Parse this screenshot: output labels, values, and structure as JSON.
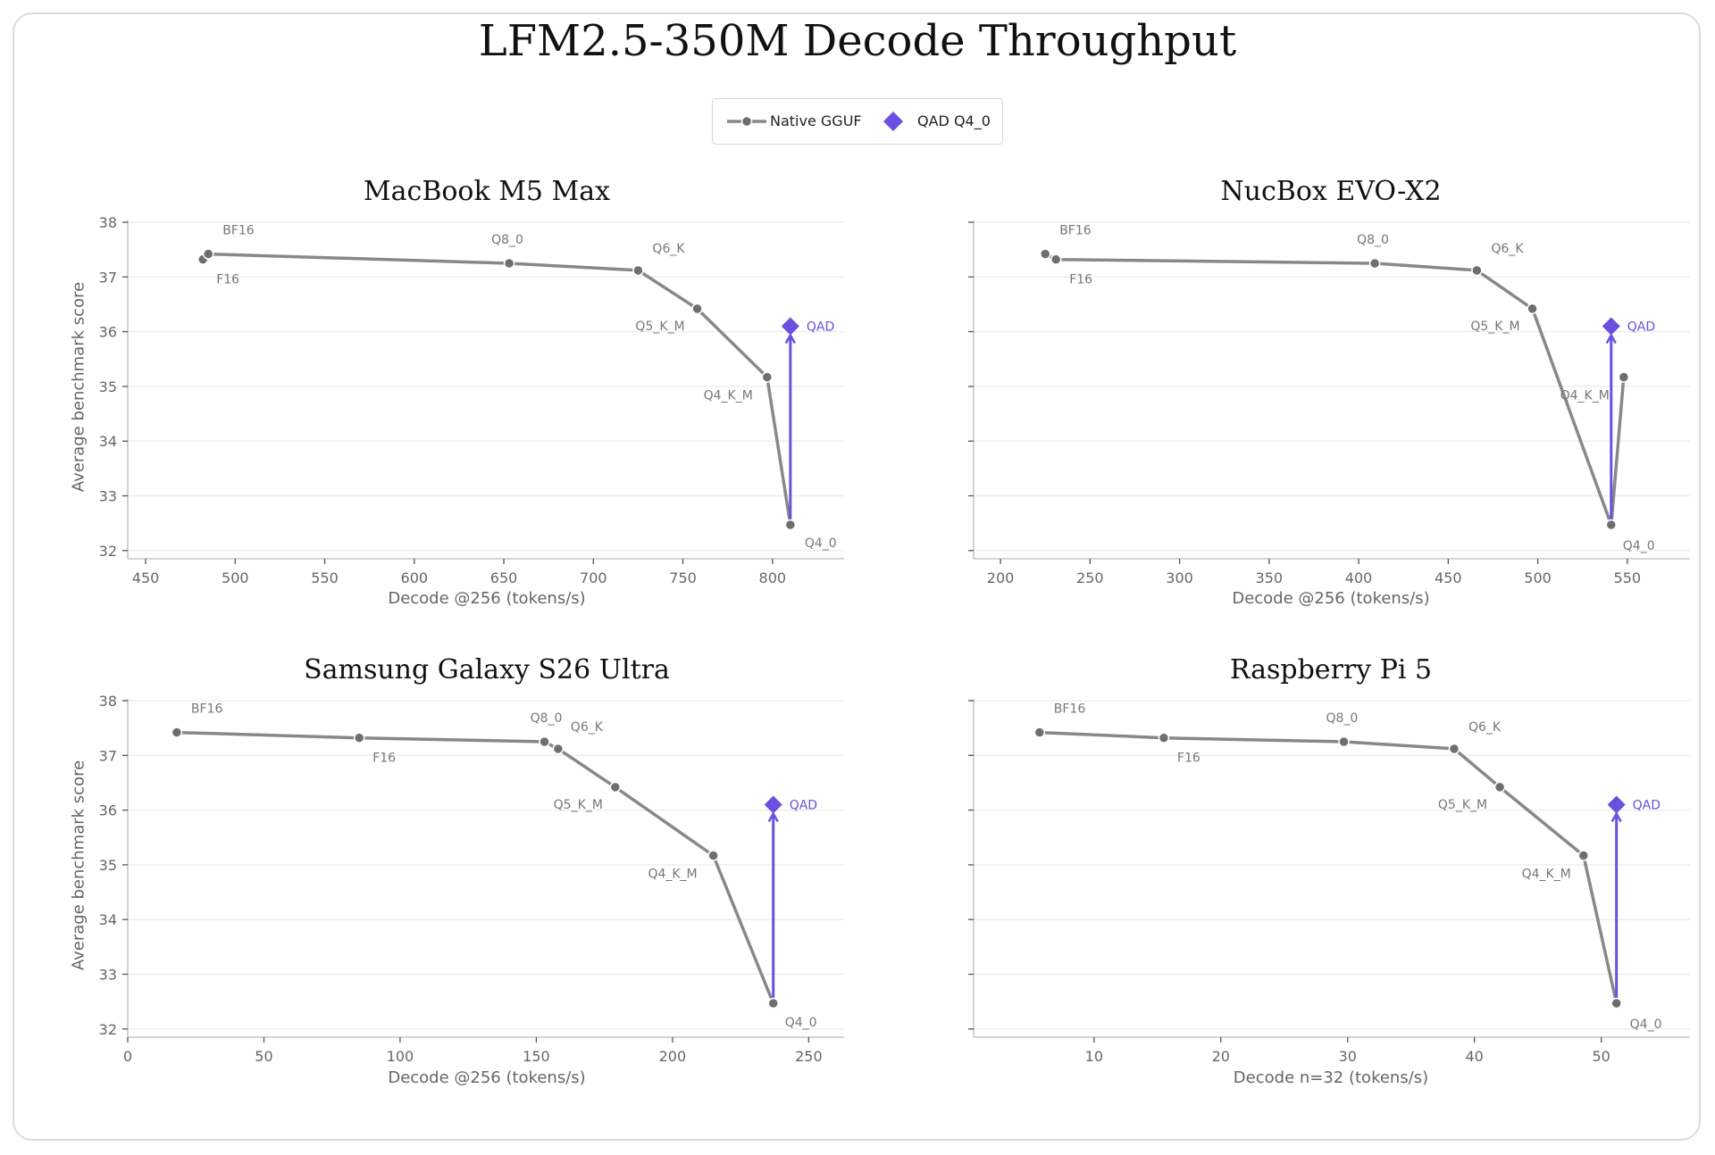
{
  "figure": {
    "title": "LFM2.5-350M Decode Throughput",
    "ylabel": "Average benchmark score",
    "legend": [
      "Native GGUF",
      "QAD Q4_0"
    ],
    "colors": {
      "native": "#888888",
      "native_marker": "#6e6e6e",
      "qad": "#6a4fe0",
      "grid": "#ececec",
      "axis": "#bbbbbb",
      "tick_text": "#666666",
      "point_label": "#777777"
    }
  },
  "chart_data": [
    {
      "type": "line",
      "title": "MacBook M5 Max",
      "xlabel": "Decode @256 (tokens/s)",
      "xlim": [
        440,
        840
      ],
      "ylim": [
        31.85,
        38
      ],
      "xticks": [
        450,
        500,
        550,
        600,
        650,
        700,
        750,
        800
      ],
      "yticks": [
        32,
        33,
        34,
        35,
        36,
        37,
        38
      ],
      "series": [
        {
          "name": "Native GGUF",
          "points": [
            {
              "label": "F16",
              "x": 482,
              "y": 37.32
            },
            {
              "label": "BF16",
              "x": 485,
              "y": 37.42
            },
            {
              "label": "Q8_0",
              "x": 653,
              "y": 37.25
            },
            {
              "label": "Q6_K",
              "x": 725,
              "y": 37.12
            },
            {
              "label": "Q5_K_M",
              "x": 758,
              "y": 36.42
            },
            {
              "label": "Q4_K_M",
              "x": 797,
              "y": 35.17
            },
            {
              "label": "Q4_0",
              "x": 810,
              "y": 32.47
            }
          ]
        },
        {
          "name": "QAD Q4_0",
          "points": [
            {
              "label": "QAD",
              "x": 810,
              "y": 36.1
            }
          ]
        }
      ]
    },
    {
      "type": "line",
      "title": "NucBox EVO-X2",
      "xlabel": "Decode @256 (tokens/s)",
      "xlim": [
        185,
        585
      ],
      "ylim": [
        31.85,
        38
      ],
      "xticks": [
        200,
        250,
        300,
        350,
        400,
        450,
        500,
        550
      ],
      "yticks": [
        32,
        33,
        34,
        35,
        36,
        37,
        38
      ],
      "series": [
        {
          "name": "Native GGUF",
          "points": [
            {
              "label": "BF16",
              "x": 225,
              "y": 37.42
            },
            {
              "label": "F16",
              "x": 231,
              "y": 37.32
            },
            {
              "label": "Q8_0",
              "x": 409,
              "y": 37.25
            },
            {
              "label": "Q6_K",
              "x": 466,
              "y": 37.12
            },
            {
              "label": "Q5_K_M",
              "x": 497,
              "y": 36.42
            },
            {
              "label": "Q4_0",
              "x": 541,
              "y": 32.47
            },
            {
              "label": "Q4_K_M",
              "x": 548,
              "y": 35.17
            }
          ]
        },
        {
          "name": "QAD Q4_0",
          "points": [
            {
              "label": "QAD",
              "x": 541,
              "y": 36.1
            }
          ]
        }
      ]
    },
    {
      "type": "line",
      "title": "Samsung Galaxy S26 Ultra",
      "xlabel": "Decode @256 (tokens/s)",
      "xlim": [
        0,
        263
      ],
      "ylim": [
        31.85,
        38
      ],
      "xticks": [
        0,
        50,
        100,
        150,
        200,
        250
      ],
      "yticks": [
        32,
        33,
        34,
        35,
        36,
        37,
        38
      ],
      "series": [
        {
          "name": "Native GGUF",
          "points": [
            {
              "label": "BF16",
              "x": 18,
              "y": 37.42
            },
            {
              "label": "F16",
              "x": 85,
              "y": 37.32
            },
            {
              "label": "Q8_0",
              "x": 153,
              "y": 37.25
            },
            {
              "label": "Q6_K",
              "x": 158,
              "y": 37.12
            },
            {
              "label": "Q5_K_M",
              "x": 179,
              "y": 36.42
            },
            {
              "label": "Q4_K_M",
              "x": 215,
              "y": 35.17
            },
            {
              "label": "Q4_0",
              "x": 237,
              "y": 32.47
            }
          ]
        },
        {
          "name": "QAD Q4_0",
          "points": [
            {
              "label": "QAD",
              "x": 237,
              "y": 36.1
            }
          ]
        }
      ]
    },
    {
      "type": "line",
      "title": "Raspberry Pi 5",
      "xlabel": "Decode n=32 (tokens/s)",
      "xlim": [
        0.5,
        57
      ],
      "ylim": [
        31.85,
        38
      ],
      "xticks": [
        10,
        20,
        30,
        40,
        50
      ],
      "yticks": [
        32,
        33,
        34,
        35,
        36,
        37,
        38
      ],
      "series": [
        {
          "name": "Native GGUF",
          "points": [
            {
              "label": "BF16",
              "x": 5.7,
              "y": 37.42
            },
            {
              "label": "F16",
              "x": 15.5,
              "y": 37.32
            },
            {
              "label": "Q8_0",
              "x": 29.7,
              "y": 37.25
            },
            {
              "label": "Q6_K",
              "x": 38.4,
              "y": 37.12
            },
            {
              "label": "Q5_K_M",
              "x": 42.0,
              "y": 36.42
            },
            {
              "label": "Q4_K_M",
              "x": 48.6,
              "y": 35.17
            },
            {
              "label": "Q4_0",
              "x": 51.2,
              "y": 32.47
            }
          ]
        },
        {
          "name": "QAD Q4_0",
          "points": [
            {
              "label": "QAD",
              "x": 51.2,
              "y": 36.1
            }
          ]
        }
      ]
    }
  ]
}
